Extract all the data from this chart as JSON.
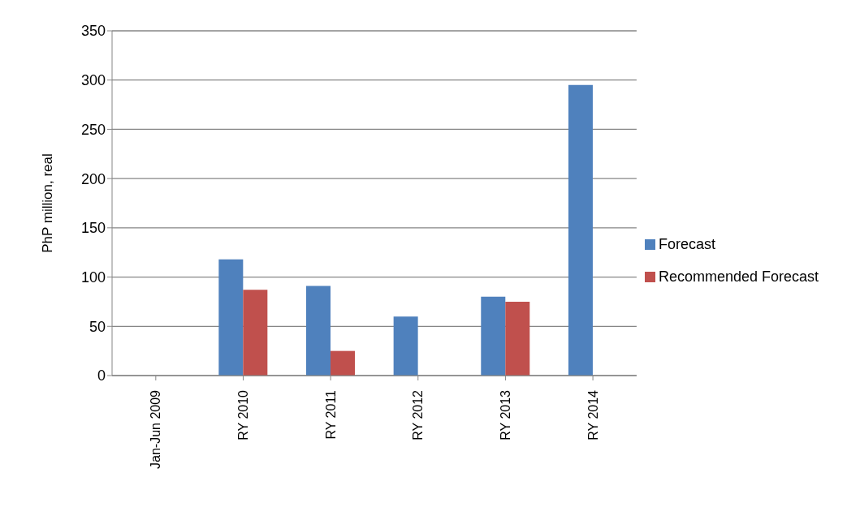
{
  "chart_data": {
    "type": "bar",
    "ylabel": "PhP million, real",
    "categories": [
      "Jan-Jun 2009",
      "RY 2010",
      "RY 2011",
      "RY 2012",
      "RY 2013",
      "RY 2014"
    ],
    "series": [
      {
        "name": "Forecast",
        "color": "#4f81bd",
        "values": [
          null,
          118,
          91,
          60,
          80,
          295
        ]
      },
      {
        "name": "Recommended Forecast",
        "color": "#c0504d",
        "values": [
          null,
          87,
          25,
          null,
          75,
          null
        ]
      }
    ],
    "ylim": [
      0,
      350
    ],
    "yticks": [
      0,
      50,
      100,
      150,
      200,
      250,
      300,
      350
    ],
    "grid": "y",
    "legend": "right"
  }
}
